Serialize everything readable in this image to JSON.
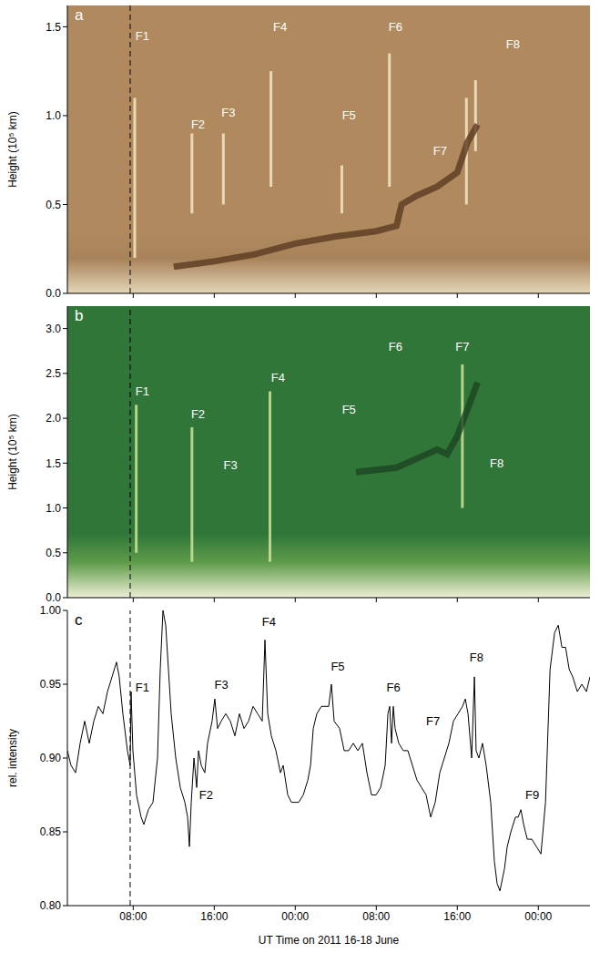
{
  "chart_data": [
    {
      "panel": "a",
      "type": "line",
      "xlim": [
        1.5,
        53.1
      ],
      "xticks": [
        {
          "value": 8,
          "label": "08:00"
        },
        {
          "value": 16,
          "label": "16:00"
        },
        {
          "value": 24,
          "label": "00:00"
        },
        {
          "value": 32,
          "label": "08:00"
        },
        {
          "value": 40,
          "label": "16:00"
        },
        {
          "value": 48,
          "label": "00:00"
        }
      ],
      "ylim": [
        0,
        1.62
      ],
      "yticks": [
        {
          "value": 0,
          "label": "0.0"
        },
        {
          "value": 0.5,
          "label": "0.5"
        },
        {
          "value": 1,
          "label": "1.0"
        },
        {
          "value": 1.5,
          "label": "1.5"
        }
      ],
      "ylabel": "Height (10⁵ km)",
      "tick_labels": "y",
      "color": "#b08a5e",
      "vline": 7.7,
      "series": [
        {
          "color": "#5a3a20",
          "x": [
            12,
            16,
            20,
            24,
            28,
            32,
            34,
            34.5,
            36,
            38,
            40,
            41,
            42
          ],
          "values": [
            0.15,
            0.18,
            0.22,
            0.28,
            0.32,
            0.35,
            0.38,
            0.5,
            0.55,
            0.6,
            0.68,
            0.85,
            0.95
          ]
        }
      ],
      "segments": [
        {
          "x": 8.15,
          "y": [
            0.2,
            1.1
          ]
        },
        {
          "x": 13.8,
          "y": [
            0.45,
            0.9
          ]
        },
        {
          "x": 16.9,
          "y": [
            0.5,
            0.9
          ]
        },
        {
          "x": 21.6,
          "y": [
            0.6,
            1.25
          ]
        },
        {
          "x": 28.6,
          "y": [
            0.45,
            0.72
          ]
        },
        {
          "x": 33.3,
          "y": [
            0.6,
            1.35
          ]
        },
        {
          "x": 40.9,
          "y": [
            0.5,
            1.1
          ]
        },
        {
          "x": 41.8,
          "y": [
            0.8,
            1.2
          ]
        }
      ],
      "annotations": [
        {
          "text": "F1",
          "x": 8.9,
          "y": 1.45
        },
        {
          "text": "F2",
          "x": 14.4,
          "y": 0.95
        },
        {
          "text": "F3",
          "x": 17.4,
          "y": 1.02
        },
        {
          "text": "F4",
          "x": 22.5,
          "y": 1.5
        },
        {
          "text": "F5",
          "x": 29.3,
          "y": 1.0
        },
        {
          "text": "F6",
          "x": 33.9,
          "y": 1.5
        },
        {
          "text": "F7",
          "x": 38.3,
          "y": 0.8
        },
        {
          "text": "F8",
          "x": 45.5,
          "y": 1.4
        }
      ]
    },
    {
      "panel": "b",
      "type": "line",
      "xlim": [
        1.5,
        53.1
      ],
      "xticks": [
        {
          "value": 8,
          "label": "08:00"
        },
        {
          "value": 16,
          "label": "16:00"
        },
        {
          "value": 24,
          "label": "00:00"
        },
        {
          "value": 32,
          "label": "08:00"
        },
        {
          "value": 40,
          "label": "16:00"
        },
        {
          "value": 48,
          "label": "00:00"
        }
      ],
      "ylim": [
        0,
        3.25
      ],
      "yticks": [
        {
          "value": 0,
          "label": "0.0"
        },
        {
          "value": 0.5,
          "label": "0.5"
        },
        {
          "value": 1,
          "label": "1.0"
        },
        {
          "value": 1.5,
          "label": "1.5"
        },
        {
          "value": 2,
          "label": "2.0"
        },
        {
          "value": 2.5,
          "label": "2.5"
        },
        {
          "value": 3,
          "label": "3.0"
        }
      ],
      "ylabel": "Height (10⁵ km)",
      "tick_labels": "y",
      "color": "#2f7638",
      "vline": 7.7,
      "series": [
        {
          "color": "#1d4522",
          "x": [
            30,
            34,
            36,
            38,
            39,
            40,
            41,
            42
          ],
          "values": [
            1.4,
            1.45,
            1.55,
            1.65,
            1.6,
            1.8,
            2.1,
            2.4
          ]
        }
      ],
      "segments": [
        {
          "x": 8.3,
          "y": [
            0.5,
            2.15
          ]
        },
        {
          "x": 13.8,
          "y": [
            0.4,
            1.9
          ]
        },
        {
          "x": 21.5,
          "y": [
            0.4,
            2.3
          ]
        },
        {
          "x": 40.5,
          "y": [
            1.0,
            2.6
          ]
        }
      ],
      "annotations": [
        {
          "text": "F1",
          "x": 8.9,
          "y": 2.3
        },
        {
          "text": "F2",
          "x": 14.4,
          "y": 2.05
        },
        {
          "text": "F3",
          "x": 17.6,
          "y": 1.48
        },
        {
          "text": "F4",
          "x": 22.3,
          "y": 2.45
        },
        {
          "text": "F5",
          "x": 29.3,
          "y": 2.1
        },
        {
          "text": "F6",
          "x": 33.9,
          "y": 2.8
        },
        {
          "text": "F7",
          "x": 40.5,
          "y": 2.8
        },
        {
          "text": "F8",
          "x": 43.9,
          "y": 1.5
        }
      ]
    },
    {
      "panel": "c",
      "type": "line",
      "xlim": [
        1.5,
        53.1
      ],
      "xticks": [
        {
          "value": 8,
          "label": "08:00"
        },
        {
          "value": 16,
          "label": "16:00"
        },
        {
          "value": 24,
          "label": "00:00"
        },
        {
          "value": 32,
          "label": "08:00"
        },
        {
          "value": 40,
          "label": "16:00"
        },
        {
          "value": 48,
          "label": "00:00"
        }
      ],
      "xlabel": "UT Time on 2011 16-18 June",
      "ylim": [
        0.8,
        1.0
      ],
      "yticks": [
        {
          "value": 0.8,
          "label": "0.80"
        },
        {
          "value": 0.85,
          "label": "0.85"
        },
        {
          "value": 0.9,
          "label": "0.90"
        },
        {
          "value": 0.95,
          "label": "0.95"
        },
        {
          "value": 1.0,
          "label": "1.00"
        }
      ],
      "ylabel": "rel. intensity",
      "vline": 7.7,
      "series": [
        {
          "color": "#000000",
          "x": [
            1.5,
            1.86,
            2.31,
            2.76,
            3.21,
            3.66,
            4.11,
            4.56,
            5.01,
            5.46,
            5.91,
            6.35,
            6.62,
            6.98,
            7.43,
            7.7,
            7.79,
            7.97,
            8.33,
            8.78,
            9.05,
            9.5,
            9.95,
            10.4,
            10.67,
            10.94,
            11.21,
            11.48,
            11.75,
            12.2,
            12.65,
            13.1,
            13.37,
            13.55,
            13.73,
            14.0,
            14.27,
            14.45,
            14.72,
            15.07,
            15.34,
            15.79,
            16.06,
            16.33,
            16.69,
            17.14,
            17.59,
            18.04,
            18.49,
            18.94,
            19.39,
            19.84,
            20.29,
            20.74,
            21.01,
            21.28,
            21.64,
            22.09,
            22.54,
            22.81,
            23.26,
            23.62,
            24.34,
            24.79,
            25.24,
            25.51,
            25.78,
            26.13,
            26.58,
            27.03,
            27.3,
            27.57,
            27.84,
            28.38,
            28.83,
            29.28,
            29.73,
            30.18,
            30.63,
            31.08,
            31.53,
            31.98,
            32.43,
            32.88,
            33.15,
            33.33,
            33.51,
            33.68,
            33.86,
            34.22,
            34.67,
            35.12,
            35.57,
            36.02,
            36.47,
            36.92,
            37.37,
            37.82,
            38.27,
            38.72,
            39.17,
            39.62,
            40.07,
            40.52,
            40.79,
            41.06,
            41.42,
            41.69,
            41.86,
            42.13,
            42.49,
            42.85,
            43.3,
            43.66,
            43.93,
            44.21,
            44.66,
            44.93,
            45.29,
            45.74,
            46.01,
            46.28,
            46.55,
            46.91,
            47.36,
            47.81,
            48.26,
            48.71,
            49.16,
            49.61,
            49.97,
            50.33,
            50.69,
            51.05,
            51.4,
            51.85,
            52.3,
            52.75,
            53.1
          ],
          "values": [
            0.905,
            0.895,
            0.89,
            0.91,
            0.925,
            0.91,
            0.925,
            0.935,
            0.93,
            0.945,
            0.955,
            0.965,
            0.955,
            0.93,
            0.905,
            0.895,
            0.945,
            0.905,
            0.875,
            0.86,
            0.855,
            0.865,
            0.87,
            0.9,
            0.96,
            1.0,
            0.99,
            0.96,
            0.93,
            0.9,
            0.88,
            0.87,
            0.86,
            0.84,
            0.87,
            0.9,
            0.88,
            0.905,
            0.895,
            0.89,
            0.91,
            0.925,
            0.94,
            0.92,
            0.925,
            0.93,
            0.925,
            0.915,
            0.93,
            0.92,
            0.925,
            0.935,
            0.93,
            0.925,
            0.98,
            0.93,
            0.915,
            0.905,
            0.89,
            0.895,
            0.875,
            0.87,
            0.87,
            0.875,
            0.885,
            0.895,
            0.92,
            0.93,
            0.935,
            0.935,
            0.935,
            0.95,
            0.925,
            0.92,
            0.905,
            0.905,
            0.91,
            0.905,
            0.91,
            0.89,
            0.875,
            0.875,
            0.88,
            0.895,
            0.93,
            0.935,
            0.91,
            0.935,
            0.92,
            0.91,
            0.905,
            0.905,
            0.895,
            0.885,
            0.88,
            0.875,
            0.86,
            0.87,
            0.89,
            0.9,
            0.91,
            0.925,
            0.93,
            0.935,
            0.94,
            0.93,
            0.9,
            0.955,
            0.905,
            0.9,
            0.91,
            0.895,
            0.87,
            0.83,
            0.815,
            0.81,
            0.825,
            0.84,
            0.85,
            0.86,
            0.86,
            0.865,
            0.855,
            0.845,
            0.845,
            0.84,
            0.835,
            0.87,
            0.96,
            0.985,
            0.99,
            0.975,
            0.975,
            0.96,
            0.955,
            0.945,
            0.95,
            0.945,
            0.955
          ]
        }
      ],
      "annotations": [
        {
          "text": "F1",
          "x": 8.9,
          "y": 0.948
        },
        {
          "text": "F2",
          "x": 15.2,
          "y": 0.875
        },
        {
          "text": "F3",
          "x": 16.7,
          "y": 0.95
        },
        {
          "text": "F4",
          "x": 21.4,
          "y": 0.992
        },
        {
          "text": "F5",
          "x": 28.2,
          "y": 0.962
        },
        {
          "text": "F6",
          "x": 33.7,
          "y": 0.948
        },
        {
          "text": "F7",
          "x": 37.6,
          "y": 0.925
        },
        {
          "text": "F8",
          "x": 41.9,
          "y": 0.968
        },
        {
          "text": "F9",
          "x": 47.4,
          "y": 0.875
        }
      ]
    }
  ]
}
